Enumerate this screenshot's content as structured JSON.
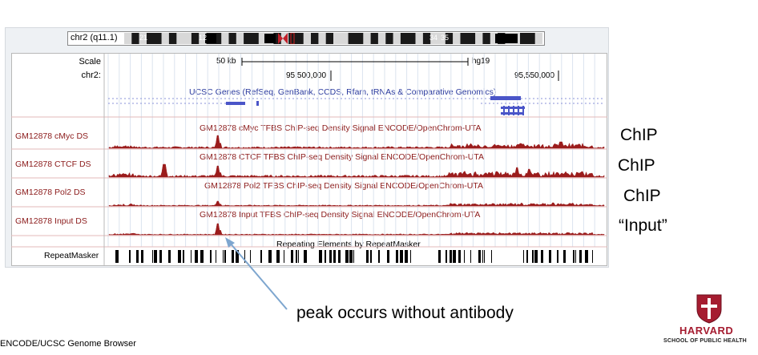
{
  "ideogram": {
    "label": "chr2 (q11.1)",
    "band_numbers": [
      "21",
      "12",
      "34",
      "35"
    ]
  },
  "ruler": {
    "scale_label": "Scale",
    "scale_value": "50 kb",
    "assembly": "hg19",
    "chrom_label": "chr2:",
    "positions": [
      "95,500,000",
      "95,550,000"
    ]
  },
  "genes_track": {
    "title": "UCSC Genes (RefSeq, GenBank, CCDS, Rfam, tRNAs & Comparative Genomics)"
  },
  "signal_tracks": [
    {
      "name": "GM12878 cMyc DS",
      "title": "GM12878 cMyc TFBS ChIP-seq Density Signal ENCODE/OpenChrom-UTA",
      "side_label": "ChIP"
    },
    {
      "name": "GM12878 CTCF DS",
      "title": "GM12878 CTCF TFBS ChIP-seq Density Signal ENCODE/OpenChrom-UTA",
      "side_label": "ChIP"
    },
    {
      "name": "GM12878 Pol2 DS",
      "title": "GM12878 Pol2 TFBS ChIP-seq Density Signal ENCODE/OpenChrom-UTA",
      "side_label": "ChIP"
    },
    {
      "name": "GM12878 Input DS",
      "title": "GM12878 Input TFBS ChIP-seq Density Signal ENCODE/OpenChrom-UTA",
      "side_label": "“Input”"
    }
  ],
  "repeat_track": {
    "title": "Repeating Elements by RepeatMasker",
    "name": "RepeatMasker"
  },
  "annotation": "peak occurs without antibody",
  "credit": "ENCODE/UCSC Genome Browser",
  "logo": {
    "name": "HARVARD",
    "school": "SCHOOL OF PUBLIC HEALTH"
  },
  "colors": {
    "signal": "#9b1c1c",
    "gene": "#4a55c8",
    "arrow": "#7ea6cf",
    "harvard": "#a51c30"
  }
}
